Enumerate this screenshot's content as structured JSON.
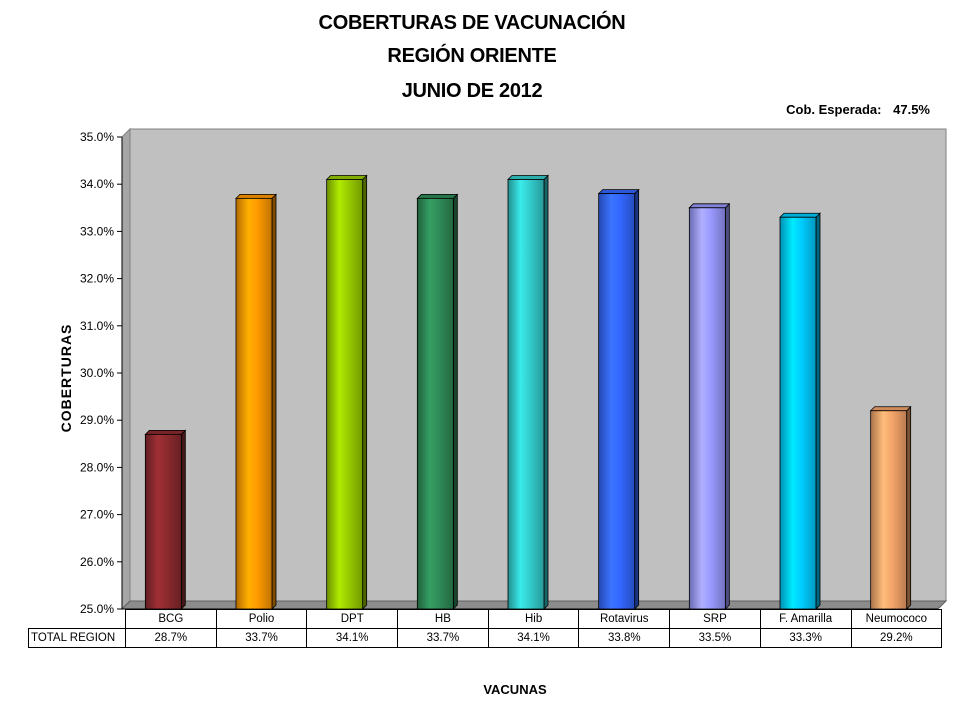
{
  "title_lines": [
    "COBERTURAS DE VACUNACIÓN",
    "REGIÓN ORIENTE",
    "JUNIO DE 2012"
  ],
  "expected": {
    "label": "Cob. Esperada:",
    "value": "47.5%"
  },
  "chart_data": {
    "type": "bar",
    "title": "COBERTURAS DE VACUNACIÓN REGIÓN ORIENTE JUNIO DE 2012",
    "xlabel": "VACUNAS",
    "ylabel": "COBERTURAS",
    "ylim": [
      25.0,
      35.0
    ],
    "yticks": [
      "25.0%",
      "26.0%",
      "27.0%",
      "28.0%",
      "29.0%",
      "30.0%",
      "31.0%",
      "32.0%",
      "33.0%",
      "34.0%",
      "35.0%"
    ],
    "categories": [
      "BCG",
      "Polio",
      "DPT",
      "HB",
      "Hib",
      "Rotavirus",
      "SRP",
      "F. Amarilla",
      "Neumococo"
    ],
    "series": [
      {
        "name": "TOTAL REGION",
        "values": [
          28.7,
          33.7,
          34.1,
          33.7,
          34.1,
          33.8,
          33.5,
          33.3,
          29.2
        ],
        "labels": [
          "28.7%",
          "33.7%",
          "34.1%",
          "33.7%",
          "34.1%",
          "33.8%",
          "33.5%",
          "33.3%",
          "29.2%"
        ]
      }
    ],
    "bar_colors": [
      "#8b2a2e",
      "#ff9900",
      "#99cc00",
      "#2e8b57",
      "#33cccc",
      "#3366ff",
      "#9999ff",
      "#00ccff",
      "#f4a46a"
    ],
    "plot_background": "#c0c0c0",
    "grid": false,
    "legend": "none"
  }
}
